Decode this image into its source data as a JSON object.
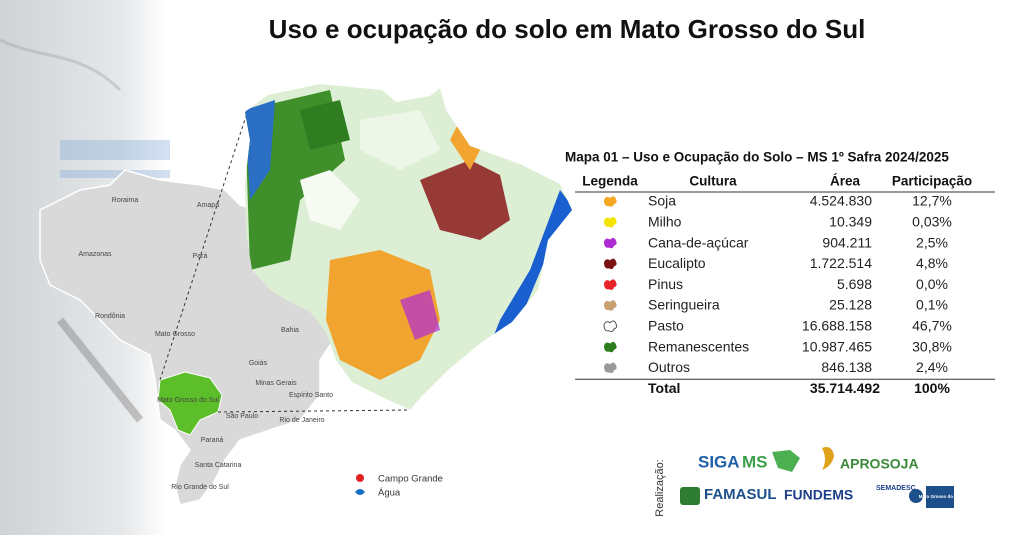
{
  "title": "Uso e ocupação do solo em Mato Grosso do Sul",
  "table": {
    "caption": "Mapa 01 – Uso e Ocupação do Solo – MS 1º Safra 2024/2025",
    "headers": [
      "Legenda",
      "Cultura",
      "Área",
      "Participação"
    ],
    "rows": [
      {
        "color": "#f5a623",
        "culture": "Soja",
        "area": "4.524.830",
        "share": "12,7%"
      },
      {
        "color": "#f2e400",
        "culture": "Milho",
        "area": "10.349",
        "share": "0,03%"
      },
      {
        "color": "#b02ad4",
        "culture": "Cana-de-açúcar",
        "area": "904.211",
        "share": "2,5%"
      },
      {
        "color": "#7a1212",
        "culture": "Eucalipto",
        "area": "1.722.514",
        "share": "4,8%"
      },
      {
        "color": "#e8242a",
        "culture": "Pinus",
        "area": "5.698",
        "share": "0,0%"
      },
      {
        "color": "#c9a071",
        "culture": "Seringueira",
        "area": "25.128",
        "share": "0,1%"
      },
      {
        "color": "#ffffff",
        "culture": "Pasto",
        "area": "16.688.158",
        "share": "46,7%"
      },
      {
        "color": "#2e7d1e",
        "culture": "Remanescentes",
        "area": "10.987.465",
        "share": "30,8%"
      },
      {
        "color": "#9a9a9a",
        "culture": "Outros",
        "area": "846.138",
        "share": "2,4%"
      }
    ],
    "total": {
      "label": "Total",
      "area": "35.714.492",
      "share": "100%"
    }
  },
  "brazil_map": {
    "labels": [
      "Roraima",
      "Amapá",
      "Amazonas",
      "Pará",
      "Rondônia",
      "Mato Grosso",
      "Bahia",
      "Goiás",
      "Minas Gerais",
      "Espírito Santo",
      "Mato Grosso do Sul",
      "São Paulo",
      "Rio de Janeiro",
      "Paraná",
      "Santa Catarina",
      "Rio Grande do Sul"
    ]
  },
  "map_legend": [
    "Campo Grande",
    "Água"
  ],
  "credits": {
    "label": "Realização:",
    "logos": [
      "SIGA",
      "MS",
      "APROSOJA",
      "FAMASUL",
      "FUNDEMS",
      "SEMADESC",
      "Mato Grosso do Sul"
    ]
  }
}
